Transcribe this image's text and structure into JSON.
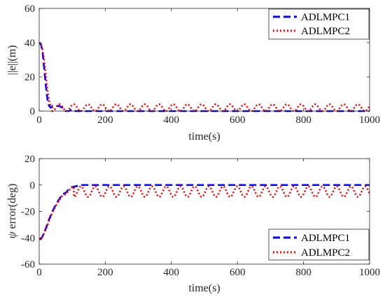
{
  "chart_data": [
    {
      "type": "line",
      "xlabel": "time(s)",
      "ylabel": "||e||(m)",
      "xlim": [
        0,
        1000
      ],
      "ylim": [
        0,
        60
      ],
      "xticks": [
        "0",
        "200",
        "400",
        "600",
        "800",
        "1000"
      ],
      "yticks": [
        "0",
        "20",
        "40",
        "60"
      ],
      "grid": false,
      "legend_position": "top-right",
      "series": [
        {
          "name": "ADLMPC1",
          "color": "#0000ff",
          "style": "dashed",
          "x": [
            0,
            5,
            10,
            15,
            20,
            25,
            30,
            35,
            40,
            50,
            60,
            70,
            75,
            80,
            90,
            100,
            110,
            130,
            150,
            200,
            300,
            400,
            500,
            600,
            700,
            800,
            900,
            1000
          ],
          "y": [
            40,
            39,
            35,
            25,
            15,
            7,
            3,
            2,
            3,
            3,
            3,
            2,
            0.5,
            0,
            0,
            1,
            0,
            0,
            0,
            0,
            0,
            0,
            0,
            0,
            0,
            0,
            0,
            0
          ]
        },
        {
          "name": "ADLMPC2",
          "color": "#ff0000",
          "style": "dotted",
          "osc": {
            "x_start": 0,
            "x_end": 1000,
            "decay": [
              [
                0,
                40
              ],
              [
                5,
                39
              ],
              [
                10,
                36
              ],
              [
                15,
                30
              ],
              [
                20,
                21
              ],
              [
                25,
                12
              ],
              [
                30,
                6
              ],
              [
                35,
                3
              ],
              [
                40,
                2
              ]
            ],
            "from_x": 40,
            "base": 2,
            "amp": 2,
            "period": 43
          }
        }
      ]
    },
    {
      "type": "line",
      "xlabel": "time(s)",
      "ylabel": "ψ error(deg)",
      "ylabel_symbol": "ψ",
      "ylabel_rest": " error(deg)",
      "xlim": [
        0,
        1000
      ],
      "ylim": [
        -60,
        20
      ],
      "xticks": [
        "0",
        "200",
        "400",
        "600",
        "800",
        "1000"
      ],
      "yticks": [
        "-60",
        "-40",
        "-20",
        "0",
        "20"
      ],
      "grid": false,
      "legend_position": "bottom-right",
      "series": [
        {
          "name": "ADLMPC1",
          "color": "#0000ff",
          "style": "dashed",
          "x": [
            0,
            5,
            10,
            20,
            30,
            40,
            50,
            60,
            70,
            80,
            90,
            100,
            110,
            120,
            130,
            150,
            200,
            300,
            400,
            500,
            600,
            700,
            800,
            900,
            1000
          ],
          "y": [
            -41,
            -41,
            -39,
            -33,
            -26,
            -20,
            -15,
            -11,
            -7,
            -6,
            -3,
            -1.5,
            -1,
            -0.5,
            0,
            0,
            0,
            0,
            0,
            0,
            0,
            0,
            0,
            0,
            0
          ]
        },
        {
          "name": "ADLMPC2",
          "color": "#ff0000",
          "style": "dotted",
          "x": [
            0,
            5,
            10,
            20,
            30,
            40,
            50,
            60,
            70,
            80,
            90,
            100,
            105
          ],
          "y": [
            -41,
            -41,
            -39,
            -34,
            -27,
            -21,
            -16,
            -12,
            -8,
            -7,
            -4,
            -2,
            -1
          ],
          "osc": {
            "from_x": 105,
            "x_end": 1000,
            "base": -5,
            "amp": 4,
            "period": 43,
            "phase_x": 105
          }
        }
      ]
    }
  ]
}
